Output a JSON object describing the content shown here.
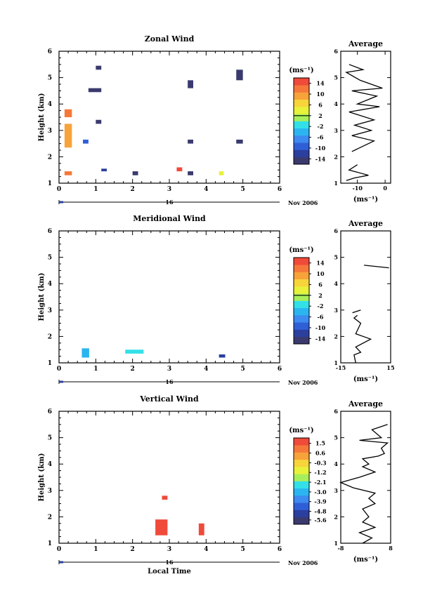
{
  "panels": [
    {
      "id": "zonal",
      "title": "Zonal Wind",
      "ylabel": "Height (km)",
      "yrange": [
        1,
        6
      ],
      "yticks": [
        "1",
        "2",
        "3",
        "4",
        "5",
        "6"
      ],
      "xrange": [
        0,
        6
      ],
      "xticks": [
        "0",
        "1",
        "2",
        "3",
        "4",
        "5",
        "6"
      ],
      "date_label": "Nov 2006",
      "day_label": "16",
      "colorbar": {
        "unit": "(ms⁻¹)",
        "ticks": [
          "14",
          "10",
          "6",
          "2",
          "-2",
          "-6",
          "-10",
          "-14"
        ],
        "min": -16,
        "max": 16,
        "zero_line": 2
      },
      "cells": [
        {
          "t0": 1.0,
          "t1": 1.15,
          "h0": 5.3,
          "h1": 5.45,
          "v": -15
        },
        {
          "t0": 0.8,
          "t1": 1.15,
          "h0": 4.45,
          "h1": 4.6,
          "v": -15
        },
        {
          "t0": 1.0,
          "t1": 1.15,
          "h0": 3.25,
          "h1": 3.4,
          "v": -15
        },
        {
          "t0": 0.65,
          "t1": 0.8,
          "h0": 2.5,
          "h1": 2.65,
          "v": -10
        },
        {
          "t0": 3.5,
          "t1": 3.65,
          "h0": 4.6,
          "h1": 4.9,
          "v": -15
        },
        {
          "t0": 3.5,
          "t1": 3.65,
          "h0": 2.5,
          "h1": 2.65,
          "v": -15
        },
        {
          "t0": 4.82,
          "t1": 5.0,
          "h0": 4.9,
          "h1": 5.3,
          "v": -15
        },
        {
          "t0": 4.82,
          "t1": 5.0,
          "h0": 2.5,
          "h1": 2.65,
          "v": -15
        },
        {
          "t0": 1.15,
          "t1": 1.3,
          "h0": 1.45,
          "h1": 1.55,
          "v": -13
        },
        {
          "t0": 2.0,
          "t1": 2.15,
          "h0": 1.3,
          "h1": 1.45,
          "v": -14
        },
        {
          "t0": 3.2,
          "t1": 3.35,
          "h0": 1.45,
          "h1": 1.6,
          "v": 14
        },
        {
          "t0": 3.5,
          "t1": 3.65,
          "h0": 1.3,
          "h1": 1.45,
          "v": -15
        },
        {
          "t0": 4.35,
          "t1": 4.48,
          "h0": 1.3,
          "h1": 1.45,
          "v": 4
        },
        {
          "t0": 0.15,
          "t1": 0.35,
          "h0": 1.3,
          "h1": 1.45,
          "v": 12
        },
        {
          "t0": 0.15,
          "t1": 0.35,
          "h0": 3.5,
          "h1": 3.8,
          "v": 12
        },
        {
          "t0": 0.15,
          "t1": 0.35,
          "h0": 2.35,
          "h1": 3.25,
          "v": 8
        }
      ],
      "avg": {
        "xrange": [
          -16,
          2
        ],
        "xticks": [
          "-10",
          "0"
        ],
        "xtick_values": [
          -10,
          0
        ],
        "xlabel": "(ms⁻¹)",
        "title": "Average",
        "segments": [
          [
            [
              -14,
              1.1
            ],
            [
              -11,
              1.2
            ],
            [
              -6,
              1.3
            ],
            [
              -13,
              1.5
            ],
            [
              -10,
              1.7
            ]
          ],
          [
            [
              -12,
              2.2
            ],
            [
              -4,
              2.6
            ],
            [
              -12,
              2.8
            ],
            [
              -5,
              3.0
            ],
            [
              -11,
              3.2
            ],
            [
              -4,
              3.4
            ],
            [
              -13,
              3.7
            ],
            [
              -2,
              3.9
            ],
            [
              -10,
              4.0
            ],
            [
              -3,
              4.3
            ],
            [
              -12,
              4.5
            ],
            [
              -1,
              4.6
            ],
            [
              -9,
              4.9
            ],
            [
              -14,
              5.2
            ],
            [
              -8,
              5.3
            ],
            [
              -13,
              5.5
            ]
          ]
        ]
      }
    },
    {
      "id": "meridional",
      "title": "Meridional Wind",
      "ylabel": "Height (km)",
      "yrange": [
        1,
        6
      ],
      "yticks": [
        "1",
        "2",
        "3",
        "4",
        "5",
        "6"
      ],
      "xrange": [
        0,
        6
      ],
      "xticks": [
        "0",
        "1",
        "2",
        "3",
        "4",
        "5",
        "6"
      ],
      "date_label": "Nov 2006",
      "day_label": "16",
      "colorbar": {
        "unit": "(ms⁻¹)",
        "ticks": [
          "14",
          "10",
          "6",
          "2",
          "-2",
          "-6",
          "-10",
          "-14"
        ],
        "min": -16,
        "max": 16,
        "zero_line": 2
      },
      "cells": [
        {
          "t0": 0.62,
          "t1": 0.82,
          "h0": 1.2,
          "h1": 1.55,
          "v": -3
        },
        {
          "t0": 1.8,
          "t1": 2.3,
          "h0": 1.35,
          "h1": 1.5,
          "v": -2
        },
        {
          "t0": 4.35,
          "t1": 4.52,
          "h0": 1.2,
          "h1": 1.32,
          "v": -12
        }
      ],
      "avg": {
        "xrange": [
          -15,
          15
        ],
        "xticks": [
          "-15",
          "15"
        ],
        "xtick_values": [
          -15,
          15
        ],
        "xlabel": "(ms⁻¹)",
        "title": "Average",
        "segments": [
          [
            [
              -6,
              1.0
            ],
            [
              -7,
              1.3
            ],
            [
              -3,
              1.4
            ],
            [
              -6,
              1.6
            ],
            [
              3,
              1.9
            ],
            [
              -6,
              2.1
            ],
            [
              -3,
              2.5
            ],
            [
              -7,
              2.7
            ],
            [
              -5,
              2.8
            ]
          ],
          [
            [
              -8,
              2.9
            ],
            [
              -3,
              3.0
            ]
          ],
          [
            [
              -1,
              4.7
            ],
            [
              14,
              4.6
            ]
          ]
        ]
      }
    },
    {
      "id": "vertical",
      "title": "Vertical Wind",
      "ylabel": "Height (km)",
      "yrange": [
        1,
        6
      ],
      "yticks": [
        "1",
        "2",
        "3",
        "4",
        "5",
        "6"
      ],
      "xrange": [
        0,
        6
      ],
      "xticks": [
        "0",
        "1",
        "2",
        "3",
        "4",
        "5",
        "6"
      ],
      "date_label": "Nov 2006",
      "day_label": "16",
      "xlabel": "Local Time",
      "colorbar": {
        "unit": "(ms⁻¹)",
        "ticks": [
          "1.5",
          "0.6",
          "-0.3",
          "-1.2",
          "-2.1",
          "-3.0",
          "-3.9",
          "-4.8",
          "-5.6"
        ],
        "min": -6.0,
        "max": 2.0,
        "zero_line": null
      },
      "cells": [
        {
          "t0": 2.62,
          "t1": 2.95,
          "h0": 1.3,
          "h1": 1.9,
          "v": 1.8
        },
        {
          "t0": 2.8,
          "t1": 2.95,
          "h0": 2.65,
          "h1": 2.8,
          "v": 1.8
        },
        {
          "t0": 3.8,
          "t1": 3.95,
          "h0": 1.3,
          "h1": 1.75,
          "v": 1.6
        }
      ],
      "avg": {
        "xrange": [
          -8,
          8
        ],
        "xticks": [
          "-8",
          "8"
        ],
        "xtick_values": [
          -8,
          8
        ],
        "xlabel": "(ms⁻¹)",
        "title": "Average",
        "segments": [
          [
            [
              -1,
              1.0
            ],
            [
              2,
              1.2
            ],
            [
              -2,
              1.4
            ],
            [
              3,
              1.6
            ],
            [
              -1,
              1.8
            ],
            [
              1,
              2.0
            ],
            [
              -1,
              2.3
            ],
            [
              3,
              2.5
            ],
            [
              1,
              2.7
            ],
            [
              3,
              2.9
            ],
            [
              -4,
              3.1
            ],
            [
              -8,
              3.3
            ],
            [
              -2,
              3.5
            ],
            [
              3,
              3.7
            ],
            [
              -1,
              3.9
            ],
            [
              1,
              4.0
            ],
            [
              -1,
              4.2
            ],
            [
              4,
              4.3
            ],
            [
              6,
              4.4
            ],
            [
              5,
              4.6
            ],
            [
              7,
              4.8
            ],
            [
              -2,
              4.9
            ],
            [
              5,
              5.0
            ],
            [
              2,
              5.3
            ],
            [
              7,
              5.5
            ]
          ]
        ]
      }
    }
  ]
}
